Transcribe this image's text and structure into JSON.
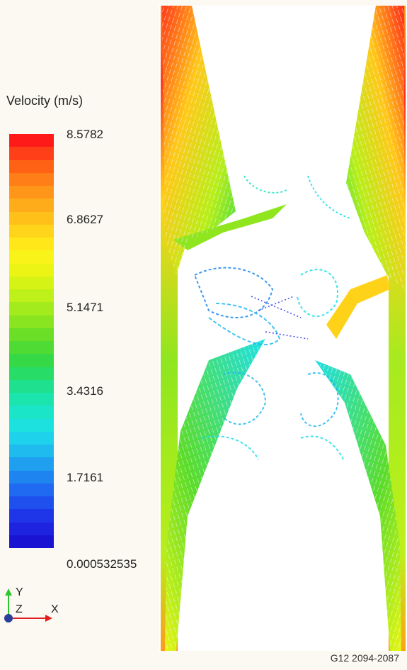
{
  "legend": {
    "title": "Velocity (m/s)",
    "ticks": [
      "8.5782",
      "6.8627",
      "5.1471",
      "3.4316",
      "1.7161",
      "0.000532535"
    ],
    "min": 0.000532535,
    "max": 8.5782,
    "colormap": [
      "#ff1a1a",
      "#ff5a14",
      "#ff8a1a",
      "#ffb01a",
      "#ffd21a",
      "#fff21a",
      "#e6f514",
      "#bdf01a",
      "#8fe61f",
      "#5cdc2a",
      "#2fd94a",
      "#1fe08c",
      "#19e6c0",
      "#1ee0e8",
      "#1fb8f0",
      "#1e88f0",
      "#1f5cf0",
      "#1f2ee6",
      "#1a14d2"
    ]
  },
  "axes_triad": {
    "y_label": "Y",
    "z_label": "Z",
    "x_label": "X"
  },
  "figure_id": "G12 2094-2087"
}
